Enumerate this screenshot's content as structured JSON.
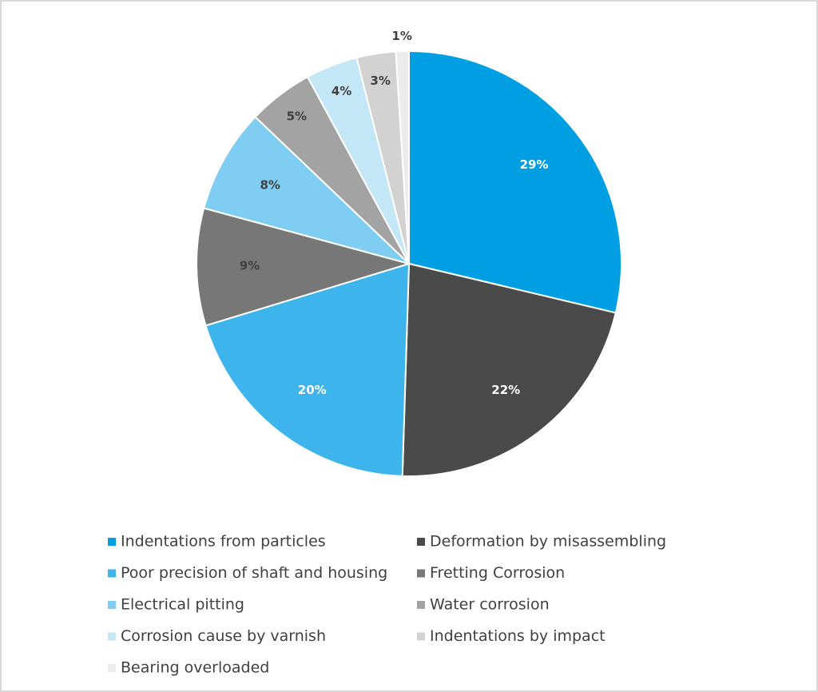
{
  "chart_data": {
    "type": "pie",
    "categories": [
      "Indentations from particles",
      "Deformation by misassembling",
      "Poor precision of shaft and housing",
      "Fretting Corrosion",
      "Electrical pitting",
      "Water corrosion",
      "Corrosion cause by varnish",
      "Indentations by impact",
      "Bearing overloaded"
    ],
    "values": [
      29,
      22,
      20,
      9,
      8,
      5,
      4,
      3,
      1
    ],
    "value_labels": [
      "29%",
      "22%",
      "20%",
      "9%",
      "8%",
      "5%",
      "4%",
      "3%",
      "1%"
    ],
    "colors": [
      "#009fe3",
      "#4a4a4a",
      "#3db4ec",
      "#777777",
      "#7fcdf2",
      "#a3a3a3",
      "#c4e7f8",
      "#d2d2d2",
      "#ececec"
    ]
  }
}
